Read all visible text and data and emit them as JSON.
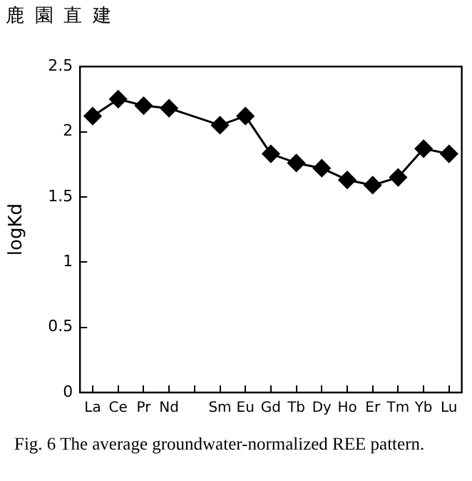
{
  "chart_data": {
    "type": "line",
    "ylabel": "logKd",
    "categories": [
      "La",
      "Ce",
      "Pr",
      "Nd",
      null,
      "Sm",
      "Eu",
      "Gd",
      "Tb",
      "Dy",
      "Ho",
      "Er",
      "Tm",
      "Yb",
      "Lu"
    ],
    "series": [
      {
        "color": "#000000",
        "values": [
          2.12,
          2.25,
          2.2,
          2.18,
          null,
          2.05,
          2.12,
          1.83,
          1.76,
          1.72,
          1.63,
          1.59,
          1.65,
          1.87,
          1.83
        ]
      }
    ],
    "ylim": [
      0,
      2.5
    ],
    "yticks": [
      0,
      0.5,
      1,
      1.5,
      2,
      2.5
    ],
    "grid": false,
    "legend": false,
    "marker": "diamond",
    "line_style": "solid",
    "annotations": [
      "鹿 園 直 建",
      "Fig. 6  The average groundwater-normalized REE pattern."
    ]
  }
}
